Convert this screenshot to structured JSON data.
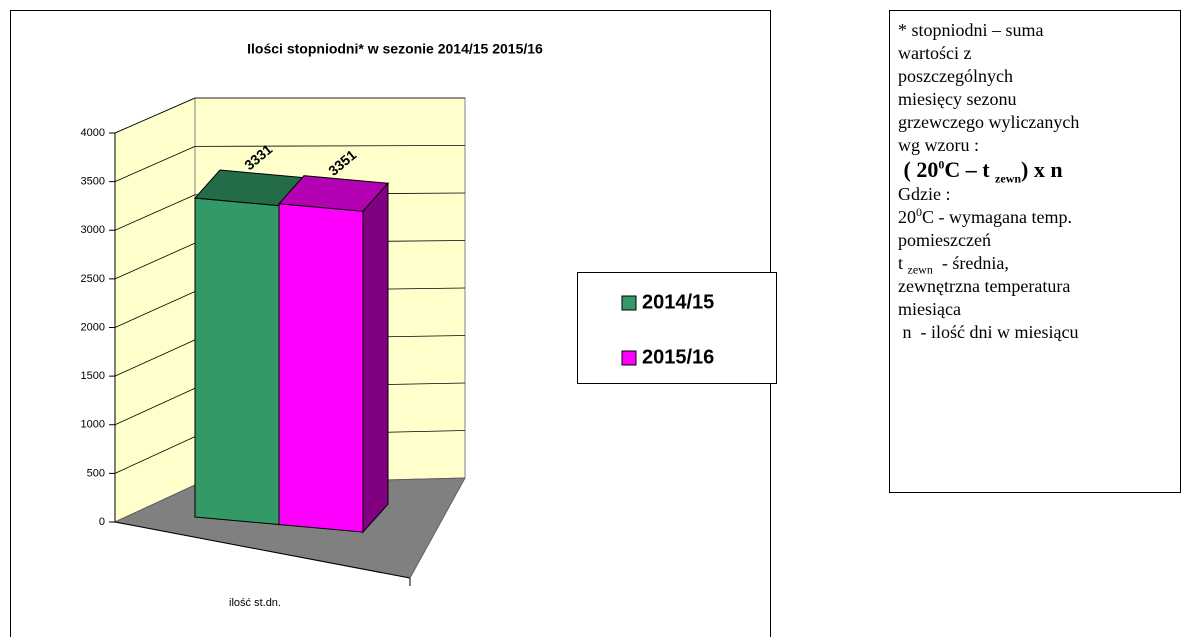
{
  "chart_data": {
    "type": "bar3d",
    "title": "Ilości stopniodni* w sezonie 2014/15 2015/16",
    "categories": [
      "ilość st.dn."
    ],
    "series": [
      {
        "name": "2014/15",
        "color": "#339966",
        "values": [
          3331
        ]
      },
      {
        "name": "2015/16",
        "color": "#ff00ff",
        "values": [
          3351
        ]
      }
    ],
    "ylim": [
      0,
      4000
    ],
    "yticks": [
      0,
      500,
      1000,
      1500,
      2000,
      2500,
      3000,
      3500,
      4000
    ],
    "grid": true,
    "legend": "right"
  },
  "note": {
    "lines": [
      "* stopniodni – suma",
      "wartości z",
      "poszczególnych",
      "miesięcy sezonu",
      "grzewczego wyliczanych",
      "wg wzoru :",
      {
        "pre": " ( 20",
        "sup": "0",
        "mid": "C – t ",
        "sub": "zewn",
        "post": ") x n"
      },
      "Gdzie :",
      {
        "pre": "20",
        "sup": "0",
        "post": "C - wymagana temp."
      },
      "pomieszczeń",
      {
        "pre": "t ",
        "sub": "zewn",
        "post": "  - średnia,"
      },
      "zewnętrzna temperatura",
      "miesiąca",
      " n  - ilość dni w miesiącu"
    ]
  }
}
